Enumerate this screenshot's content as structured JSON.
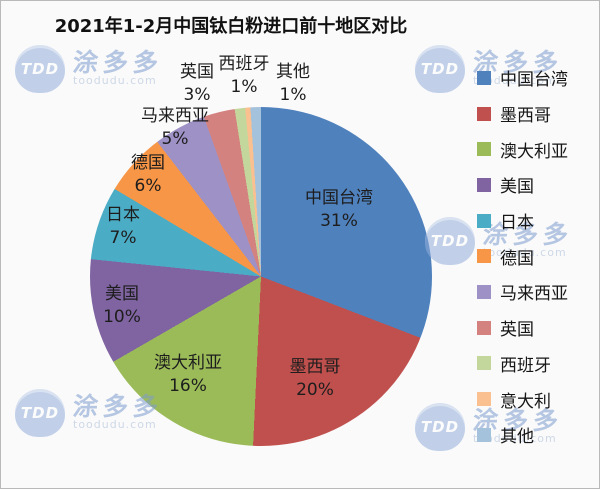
{
  "title": "2021年1-2月中国钛白粉进口前十地区对比",
  "watermark": {
    "logo": "TDD",
    "brand": "涂多多",
    "domain": "toodudu.com"
  },
  "chart_data": {
    "type": "pie",
    "title": "2021年1-2月中国钛白粉进口前十地区对比",
    "legend_position": "right",
    "slices": [
      {
        "label": "中国台湾",
        "value": 31,
        "display": "31%",
        "color": "#4F81BD"
      },
      {
        "label": "墨西哥",
        "value": 20,
        "display": "20%",
        "color": "#C0504D"
      },
      {
        "label": "澳大利亚",
        "value": 16,
        "display": "16%",
        "color": "#9BBB59"
      },
      {
        "label": "美国",
        "value": 10,
        "display": "10%",
        "color": "#8064A2"
      },
      {
        "label": "日本",
        "value": 7,
        "display": "7%",
        "color": "#4BACC6"
      },
      {
        "label": "德国",
        "value": 6,
        "display": "6%",
        "color": "#F79646"
      },
      {
        "label": "马来西亚",
        "value": 5,
        "display": "5%",
        "color": "#9E91C6"
      },
      {
        "label": "英国",
        "value": 3,
        "display": "3%",
        "color": "#D4827F"
      },
      {
        "label": "西班牙",
        "value": 1,
        "display": "1%",
        "color": "#C3D69B"
      },
      {
        "label": "意大利",
        "value": 0.5,
        "display": "",
        "color": "#FAC090"
      },
      {
        "label": "其他",
        "value": 1,
        "display": "1%",
        "color": "#A5C2DD"
      }
    ]
  }
}
